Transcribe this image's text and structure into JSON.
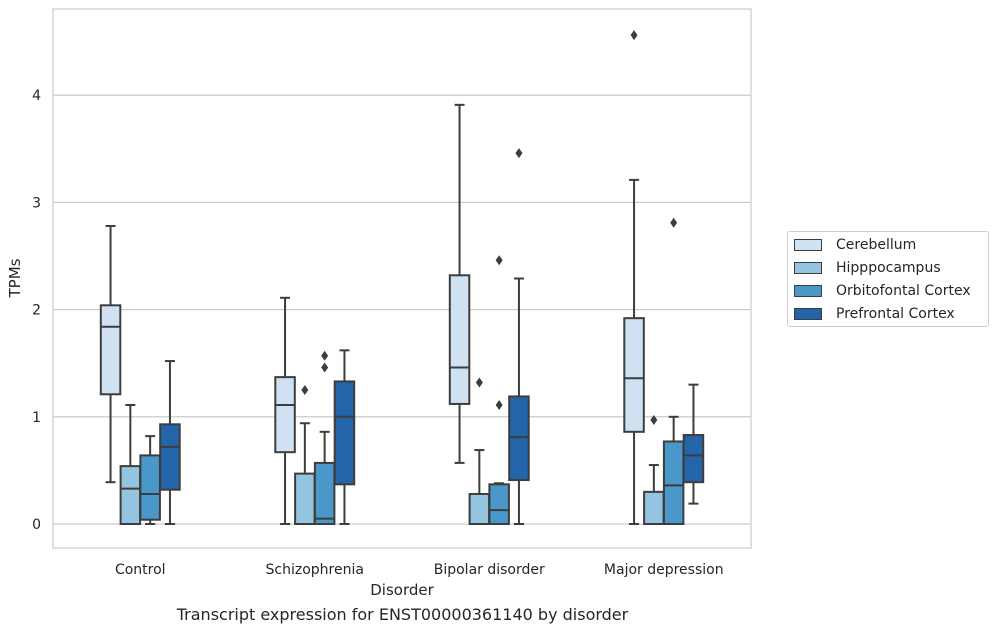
{
  "chart_data": {
    "type": "box",
    "title": "Transcript expression for ENST00000361140 by disorder",
    "xlabel": "Disorder",
    "ylabel": "TPMs",
    "ylim": [
      -0.22,
      4.8
    ],
    "yticks": [
      0,
      1,
      2,
      3,
      4
    ],
    "grid": "horizontal",
    "legend_position": "right",
    "categories": [
      "Control",
      "Schizophrenia",
      "Bipolar disorder",
      "Major depression"
    ],
    "series": [
      {
        "name": "Cerebellum",
        "color": "#d0e1f2",
        "boxes": [
          {
            "whisker_low": 0.39,
            "q1": 1.21,
            "median": 1.84,
            "q3": 2.04,
            "whisker_high": 2.78,
            "outliers": []
          },
          {
            "whisker_low": 0.0,
            "q1": 0.67,
            "median": 1.11,
            "q3": 1.37,
            "whisker_high": 2.11,
            "outliers": []
          },
          {
            "whisker_low": 0.57,
            "q1": 1.12,
            "median": 1.46,
            "q3": 2.32,
            "whisker_high": 3.91,
            "outliers": []
          },
          {
            "whisker_low": 0.0,
            "q1": 0.86,
            "median": 1.36,
            "q3": 1.92,
            "whisker_high": 3.21,
            "outliers": [
              4.56
            ]
          }
        ]
      },
      {
        "name": "Hipppocampus",
        "color": "#94c4df",
        "boxes": [
          {
            "whisker_low": 0.0,
            "q1": 0.0,
            "median": 0.33,
            "q3": 0.54,
            "whisker_high": 1.11,
            "outliers": []
          },
          {
            "whisker_low": 0.0,
            "q1": 0.0,
            "median": 0.0,
            "q3": 0.47,
            "whisker_high": 0.94,
            "outliers": [
              1.25
            ]
          },
          {
            "whisker_low": 0.0,
            "q1": 0.0,
            "median": 0.0,
            "q3": 0.28,
            "whisker_high": 0.69,
            "outliers": [
              1.32
            ]
          },
          {
            "whisker_low": 0.0,
            "q1": 0.0,
            "median": 0.0,
            "q3": 0.3,
            "whisker_high": 0.55,
            "outliers": [
              0.97
            ]
          }
        ]
      },
      {
        "name": "Orbitofontal Cortex",
        "color": "#4a98c9",
        "boxes": [
          {
            "whisker_low": 0.0,
            "q1": 0.04,
            "median": 0.28,
            "q3": 0.64,
            "whisker_high": 0.82,
            "outliers": []
          },
          {
            "whisker_low": 0.0,
            "q1": 0.0,
            "median": 0.05,
            "q3": 0.57,
            "whisker_high": 0.86,
            "outliers": [
              1.46,
              1.57
            ]
          },
          {
            "whisker_low": 0.0,
            "q1": 0.0,
            "median": 0.13,
            "q3": 0.37,
            "whisker_high": 0.38,
            "outliers": [
              1.11,
              2.46
            ]
          },
          {
            "whisker_low": 0.0,
            "q1": 0.0,
            "median": 0.36,
            "q3": 0.77,
            "whisker_high": 1.0,
            "outliers": [
              2.81
            ]
          }
        ]
      },
      {
        "name": "Prefrontal Cortex",
        "color": "#2464a9",
        "boxes": [
          {
            "whisker_low": 0.0,
            "q1": 0.32,
            "median": 0.72,
            "q3": 0.93,
            "whisker_high": 1.52,
            "outliers": []
          },
          {
            "whisker_low": 0.0,
            "q1": 0.37,
            "median": 1.0,
            "q3": 1.33,
            "whisker_high": 1.62,
            "outliers": []
          },
          {
            "whisker_low": 0.0,
            "q1": 0.41,
            "median": 0.81,
            "q3": 1.19,
            "whisker_high": 2.29,
            "outliers": [
              3.46
            ]
          },
          {
            "whisker_low": 0.19,
            "q1": 0.39,
            "median": 0.64,
            "q3": 0.83,
            "whisker_high": 1.3,
            "outliers": []
          }
        ]
      }
    ]
  }
}
